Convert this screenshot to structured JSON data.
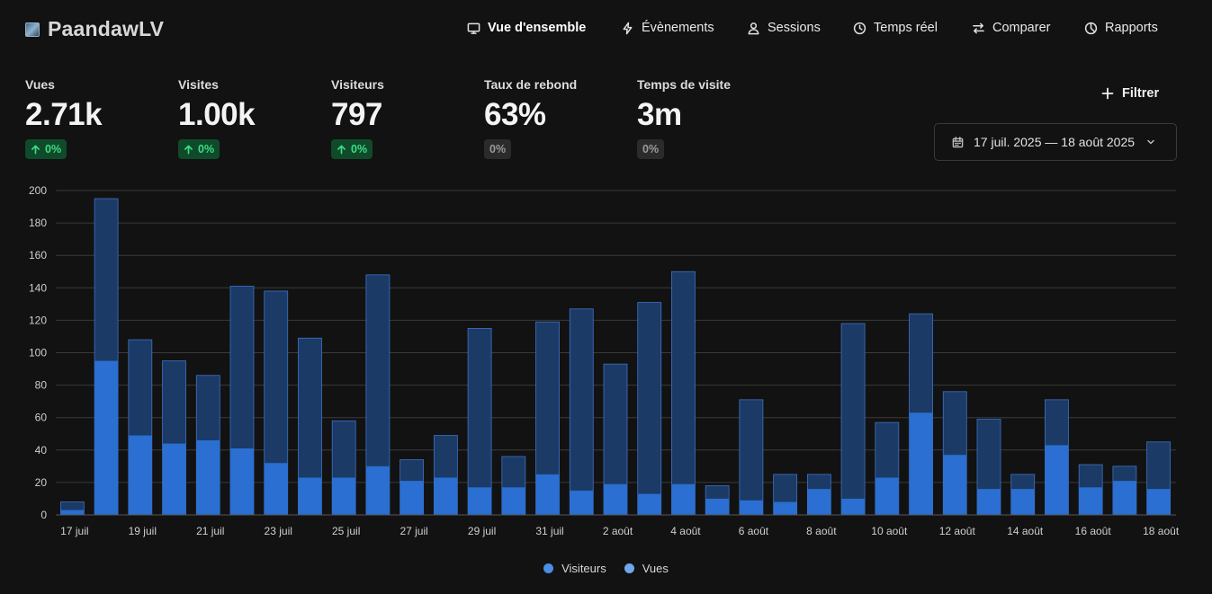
{
  "brand": {
    "name": "PaandawLV"
  },
  "nav": [
    {
      "label": "Vue d'ensemble",
      "icon": "monitor-icon",
      "active": true
    },
    {
      "label": "Évènements",
      "icon": "lightning-icon",
      "active": false
    },
    {
      "label": "Sessions",
      "icon": "user-icon",
      "active": false
    },
    {
      "label": "Temps réel",
      "icon": "clock-icon",
      "active": false
    },
    {
      "label": "Comparer",
      "icon": "swap-icon",
      "active": false
    },
    {
      "label": "Rapports",
      "icon": "pie-icon",
      "active": false
    }
  ],
  "metrics": [
    {
      "label": "Vues",
      "value": "2.71k",
      "change": "0%",
      "trend": "up"
    },
    {
      "label": "Visites",
      "value": "1.00k",
      "change": "0%",
      "trend": "up"
    },
    {
      "label": "Visiteurs",
      "value": "797",
      "change": "0%",
      "trend": "up"
    },
    {
      "label": "Taux de rebond",
      "value": "63%",
      "change": "0%",
      "trend": "neutral"
    },
    {
      "label": "Temps de visite",
      "value": "3m",
      "change": "0%",
      "trend": "neutral"
    }
  ],
  "filter": {
    "label": "Filtrer"
  },
  "date_range": {
    "label": "17 juil. 2025 — 18 août 2025"
  },
  "colors": {
    "background": "#121212",
    "visiteurs": "#2a6fd1",
    "vues": "#1b3a66",
    "vues_outline": "#3f72c4",
    "grid": "#3a3a3a",
    "badge_up_bg": "#0f4a2a",
    "badge_up_text": "#3ddc84"
  },
  "chart_data": {
    "type": "bar",
    "stacked": false,
    "overlay": true,
    "ylim": [
      0,
      200
    ],
    "yticks": [
      0,
      20,
      40,
      60,
      80,
      100,
      120,
      140,
      160,
      180,
      200
    ],
    "grid": true,
    "legend_position": "bottom-center",
    "x_tick_labels": [
      "17 juil",
      "19 juil",
      "21 juil",
      "23 juil",
      "25 juil",
      "27 juil",
      "29 juil",
      "31 juil",
      "2 août",
      "4 août",
      "6 août",
      "8 août",
      "10 août",
      "12 août",
      "14 août",
      "16 août",
      "18 août"
    ],
    "categories": [
      "17 juil",
      "18 juil",
      "19 juil",
      "20 juil",
      "21 juil",
      "22 juil",
      "23 juil",
      "24 juil",
      "25 juil",
      "26 juil",
      "27 juil",
      "28 juil",
      "29 juil",
      "30 juil",
      "31 juil",
      "1 août",
      "2 août",
      "3 août",
      "4 août",
      "5 août",
      "6 août",
      "7 août",
      "8 août",
      "9 août",
      "10 août",
      "11 août",
      "12 août",
      "13 août",
      "14 août",
      "15 août",
      "16 août",
      "17 août",
      "18 août"
    ],
    "series": [
      {
        "name": "Visiteurs",
        "values": [
          3,
          95,
          49,
          44,
          46,
          41,
          32,
          23,
          23,
          30,
          21,
          23,
          17,
          17,
          25,
          15,
          19,
          13,
          19,
          10,
          9,
          8,
          16,
          10,
          23,
          63,
          37,
          16,
          16,
          43,
          17,
          21,
          16
        ]
      },
      {
        "name": "Vues",
        "values": [
          8,
          195,
          108,
          95,
          86,
          141,
          138,
          109,
          58,
          148,
          34,
          49,
          115,
          36,
          119,
          127,
          93,
          131,
          150,
          18,
          71,
          25,
          25,
          118,
          57,
          124,
          76,
          59,
          25,
          71,
          31,
          30,
          45
        ]
      }
    ]
  }
}
